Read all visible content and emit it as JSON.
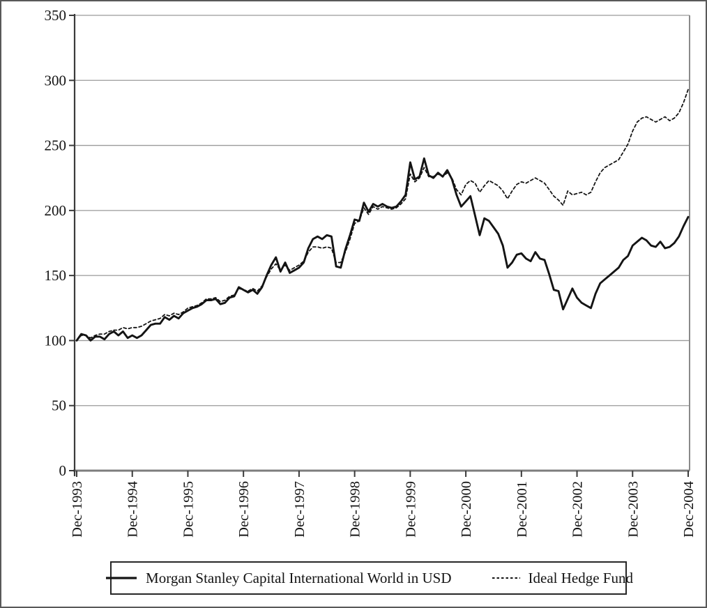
{
  "chart_data": {
    "type": "line",
    "title": "",
    "xlabel": "",
    "ylabel": "",
    "ylim": [
      0,
      350
    ],
    "y_ticks": [
      0,
      50,
      100,
      150,
      200,
      250,
      300,
      350
    ],
    "x_tick_labels": [
      "Dec-1993",
      "Dec-1994",
      "Dec-1995",
      "Dec-1996",
      "Dec-1997",
      "Dec-1998",
      "Dec-1999",
      "Dec-2000",
      "Dec-2001",
      "Dec-2002",
      "Dec-2003",
      "Dec-2004"
    ],
    "x_frequency": "monthly",
    "grid": "horizontal",
    "legend_position": "bottom",
    "line_color": "#141414",
    "series": [
      {
        "name": "Morgan Stanley Capital International World in USD",
        "style": "solid",
        "color": "#141414",
        "values": [
          100,
          105,
          104,
          100,
          103,
          103,
          101,
          105,
          107,
          104,
          107,
          102,
          104,
          102,
          104,
          108,
          112,
          113,
          113,
          118,
          116,
          119,
          117,
          121,
          123,
          125,
          126,
          128,
          131,
          131,
          132,
          128,
          129,
          133,
          134,
          141,
          139,
          137,
          139,
          136,
          141,
          150,
          158,
          164,
          153,
          160,
          152,
          154,
          156,
          160,
          171,
          178,
          180,
          178,
          181,
          180,
          157,
          156,
          170,
          181,
          193,
          192,
          206,
          199,
          205,
          203,
          205,
          203,
          202,
          203,
          207,
          212,
          237,
          224,
          226,
          240,
          227,
          225,
          229,
          226,
          231,
          224,
          212,
          203,
          207,
          211,
          196,
          181,
          194,
          192,
          187,
          182,
          173,
          156,
          160,
          166,
          167,
          163,
          161,
          168,
          163,
          162,
          151,
          139,
          138,
          124,
          132,
          140,
          133,
          129,
          127,
          125,
          136,
          144,
          147,
          150,
          153,
          156,
          162,
          165,
          173,
          176,
          179,
          177,
          173,
          172,
          176,
          171,
          172,
          175,
          180,
          188,
          195
        ]
      },
      {
        "name": "Ideal Hedge Fund",
        "style": "dashed",
        "color": "#141414",
        "values": [
          100,
          104,
          104,
          102,
          104,
          105,
          105,
          107,
          108,
          108,
          110,
          109,
          110,
          110,
          111,
          113,
          115,
          116,
          117,
          120,
          119,
          121,
          120,
          122,
          125,
          126,
          127,
          129,
          132,
          132,
          133,
          130,
          131,
          134,
          135,
          140,
          139,
          138,
          140,
          138,
          142,
          149,
          155,
          159,
          154,
          158,
          154,
          156,
          158,
          161,
          168,
          172,
          172,
          171,
          172,
          171,
          160,
          160,
          168,
          178,
          190,
          192,
          202,
          197,
          203,
          201,
          203,
          202,
          201,
          202,
          205,
          209,
          228,
          222,
          225,
          233,
          226,
          226,
          228,
          226,
          229,
          225,
          216,
          212,
          220,
          223,
          221,
          214,
          219,
          223,
          221,
          219,
          215,
          209,
          215,
          220,
          222,
          221,
          223,
          225,
          223,
          221,
          216,
          211,
          208,
          204,
          215,
          212,
          213,
          214,
          212,
          214,
          222,
          229,
          233,
          235,
          237,
          239,
          245,
          251,
          261,
          268,
          271,
          272,
          270,
          268,
          270,
          272,
          269,
          271,
          275,
          283,
          293
        ]
      }
    ]
  },
  "colors": {
    "background": "#ffffff",
    "gridline": "#9a9a9a",
    "x_axis": "#7d7d7d",
    "y_axis": "#3a3a3a",
    "right_border": "#8a8a8a",
    "text": "#141414",
    "frame": "#595959"
  }
}
